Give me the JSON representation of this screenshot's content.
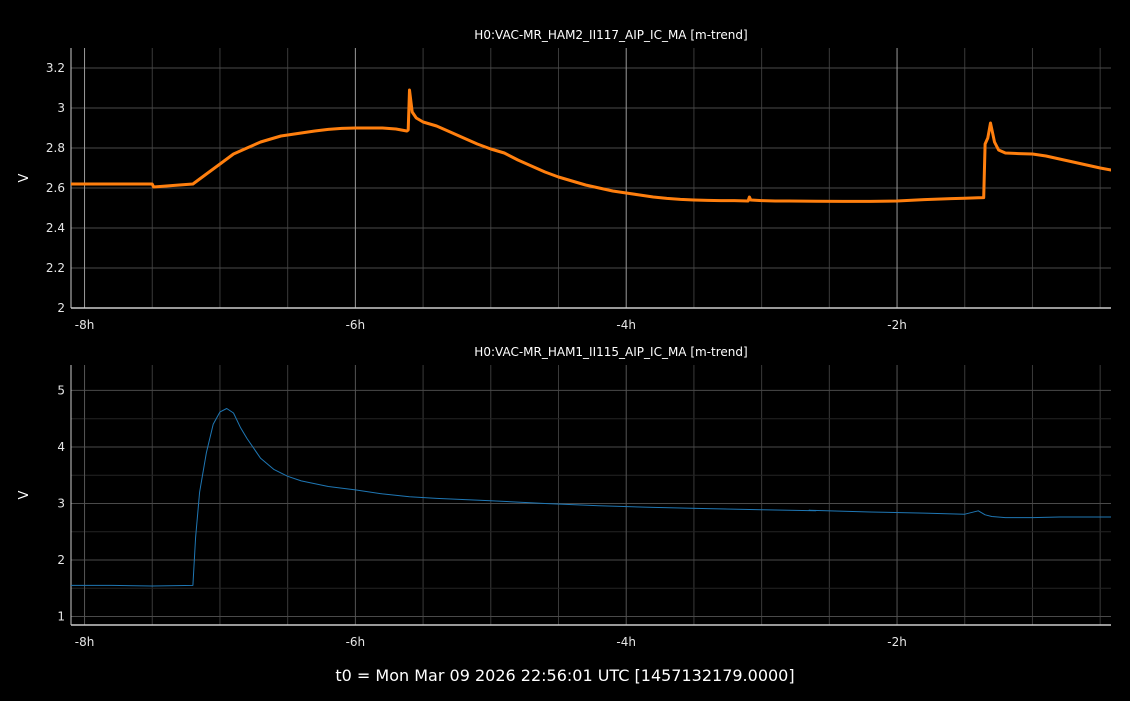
{
  "footer": {
    "t0_label": "t0 = Mon Mar 09 2026 22:56:01 UTC [1457132179.0000]"
  },
  "chart_data": [
    {
      "type": "line",
      "title": "H0:VAC-MR_HAM2_II117_AIP_IC_MA [m-trend]",
      "ylabel": "V",
      "xlabel": "",
      "xlim": [
        -8.1,
        -0.42
      ],
      "ylim": [
        2.0,
        3.3
      ],
      "x_ticks": [
        -8,
        -6,
        -4,
        -2
      ],
      "x_tick_labels": [
        "-8h",
        "-6h",
        "-4h",
        "-2h"
      ],
      "y_ticks": [
        2.0,
        2.2,
        2.4,
        2.6,
        2.8,
        3.0,
        3.2
      ],
      "y_tick_labels": [
        "2",
        "2.2",
        "2.4",
        "2.6",
        "2.8",
        "3",
        "3.2"
      ],
      "grid": true,
      "color": "#ff7f0e",
      "series": [
        {
          "x": [
            -8.1,
            -8.0,
            -7.8,
            -7.6,
            -7.5,
            -7.49,
            -7.3,
            -7.2,
            -7.1,
            -7.0,
            -6.9,
            -6.8,
            -6.7,
            -6.6,
            -6.55,
            -6.5,
            -6.4,
            -6.3,
            -6.2,
            -6.1,
            -6.0,
            -5.9,
            -5.8,
            -5.7,
            -5.62,
            -5.61,
            -5.6,
            -5.58,
            -5.55,
            -5.5,
            -5.4,
            -5.3,
            -5.2,
            -5.1,
            -5.0,
            -4.9,
            -4.8,
            -4.7,
            -4.6,
            -4.5,
            -4.4,
            -4.3,
            -4.2,
            -4.1,
            -4.0,
            -3.9,
            -3.8,
            -3.7,
            -3.6,
            -3.5,
            -3.4,
            -3.3,
            -3.2,
            -3.1,
            -3.09,
            -3.08,
            -3.0,
            -2.9,
            -2.8,
            -2.6,
            -2.4,
            -2.2,
            -2.0,
            -1.8,
            -1.6,
            -1.5,
            -1.4,
            -1.36,
            -1.35,
            -1.33,
            -1.31,
            -1.28,
            -1.25,
            -1.2,
            -1.1,
            -1.0,
            -0.9,
            -0.8,
            -0.7,
            -0.6,
            -0.5,
            -0.42
          ],
          "y": [
            2.62,
            2.62,
            2.62,
            2.62,
            2.62,
            2.605,
            2.615,
            2.62,
            2.67,
            2.72,
            2.77,
            2.8,
            2.83,
            2.85,
            2.86,
            2.865,
            2.875,
            2.885,
            2.893,
            2.898,
            2.9,
            2.9,
            2.9,
            2.895,
            2.885,
            2.89,
            3.09,
            2.98,
            2.95,
            2.93,
            2.91,
            2.88,
            2.85,
            2.82,
            2.795,
            2.775,
            2.74,
            2.71,
            2.68,
            2.655,
            2.635,
            2.615,
            2.6,
            2.585,
            2.575,
            2.565,
            2.555,
            2.548,
            2.543,
            2.54,
            2.538,
            2.537,
            2.537,
            2.535,
            2.555,
            2.54,
            2.537,
            2.535,
            2.535,
            2.534,
            2.533,
            2.533,
            2.535,
            2.542,
            2.547,
            2.549,
            2.551,
            2.552,
            2.82,
            2.85,
            2.925,
            2.83,
            2.79,
            2.775,
            2.772,
            2.77,
            2.76,
            2.745,
            2.73,
            2.715,
            2.7,
            2.69
          ]
        }
      ]
    },
    {
      "type": "line",
      "title": "H0:VAC-MR_HAM1_II115_AIP_IC_MA [m-trend]",
      "ylabel": "V",
      "xlabel": "",
      "xlim": [
        -8.1,
        -0.42
      ],
      "ylim": [
        0.85,
        5.45
      ],
      "x_ticks": [
        -8,
        -6,
        -4,
        -2
      ],
      "x_tick_labels": [
        "-8h",
        "-6h",
        "-4h",
        "-2h"
      ],
      "y_ticks": [
        1,
        2,
        3,
        4,
        5
      ],
      "y_tick_labels": [
        "1",
        "2",
        "3",
        "4",
        "5"
      ],
      "grid": true,
      "color": "#1f77b4",
      "series": [
        {
          "x": [
            -8.1,
            -7.8,
            -7.5,
            -7.2,
            -7.18,
            -7.15,
            -7.1,
            -7.05,
            -7.0,
            -6.95,
            -6.9,
            -6.85,
            -6.8,
            -6.7,
            -6.6,
            -6.5,
            -6.4,
            -6.2,
            -6.0,
            -5.8,
            -5.6,
            -5.4,
            -5.0,
            -4.6,
            -4.2,
            -3.8,
            -3.4,
            -3.0,
            -2.6,
            -2.65,
            -2.2,
            -1.8,
            -1.5,
            -1.4,
            -1.35,
            -1.3,
            -1.2,
            -1.0,
            -0.8,
            -0.42
          ],
          "y": [
            1.55,
            1.55,
            1.54,
            1.55,
            2.4,
            3.2,
            3.9,
            4.4,
            4.62,
            4.68,
            4.6,
            4.35,
            4.15,
            3.8,
            3.6,
            3.48,
            3.4,
            3.3,
            3.24,
            3.17,
            3.12,
            3.09,
            3.05,
            3.0,
            2.96,
            2.93,
            2.91,
            2.89,
            2.87,
            2.88,
            2.85,
            2.83,
            2.81,
            2.87,
            2.8,
            2.77,
            2.75,
            2.75,
            2.76,
            2.76
          ]
        }
      ]
    }
  ]
}
